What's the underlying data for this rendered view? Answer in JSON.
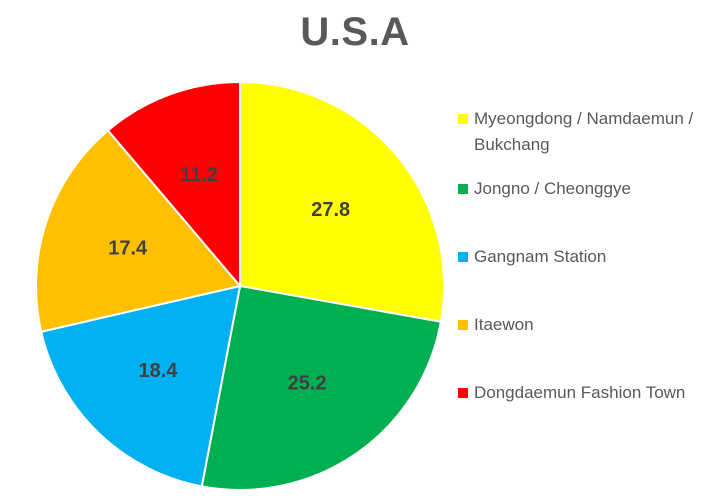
{
  "chart_data": {
    "type": "pie",
    "title": "U.S.A",
    "legend_position": "right",
    "start_angle_deg": 0,
    "direction": "clockwise",
    "slices": [
      {
        "label": "Myeongdong / Namdaemun / Bukchang",
        "value": 27.8,
        "value_label": "27.8",
        "color": "#FFFF00"
      },
      {
        "label": "Jongno / Cheonggye",
        "value": 25.2,
        "value_label": "25.2",
        "color": "#00B050"
      },
      {
        "label": "Gangnam Station",
        "value": 18.4,
        "value_label": "18.4",
        "color": "#00B0F0"
      },
      {
        "label": "Itaewon",
        "value": 17.4,
        "value_label": "17.4",
        "color": "#FFC000"
      },
      {
        "label": "Dongdaemun Fashion Town",
        "value": 11.2,
        "value_label": "11.2",
        "color": "#FF0000"
      }
    ]
  }
}
